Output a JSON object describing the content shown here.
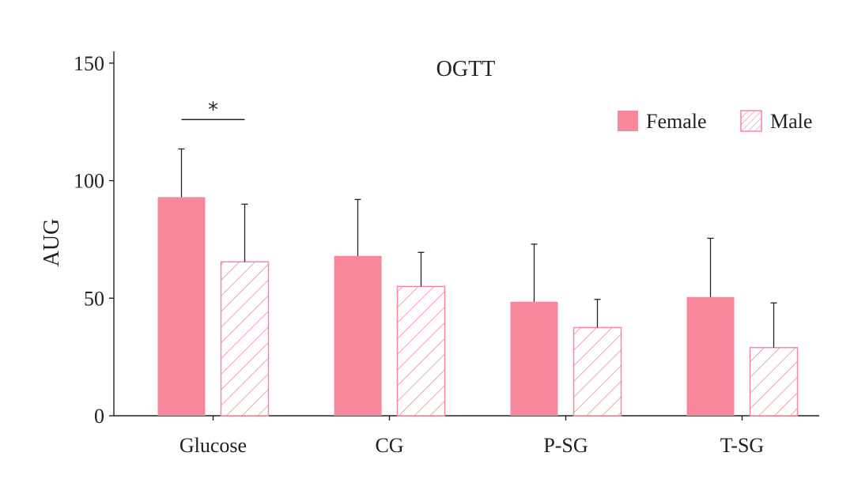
{
  "chart_data": {
    "type": "bar",
    "title": "OGTT",
    "xlabel": "",
    "ylabel": "AUG",
    "ylim": [
      0,
      155
    ],
    "yticks": [
      0,
      50,
      100,
      150
    ],
    "categories": [
      "Glucose",
      "CG",
      "P-SG",
      "T-SG"
    ],
    "series": [
      {
        "name": "Female",
        "values": [
          93,
          68,
          48.5,
          50.5
        ],
        "errors": [
          20.5,
          24,
          24.5,
          25
        ],
        "color": "#f7879a",
        "pattern": "solid"
      },
      {
        "name": "Male",
        "values": [
          65.5,
          55,
          37.5,
          29
        ],
        "errors": [
          24.5,
          14.5,
          12,
          19
        ],
        "color": "#f7879a",
        "pattern": "hatched"
      }
    ],
    "annotations": [
      {
        "category": "Glucose",
        "text": "*"
      }
    ],
    "legend_position": "top-right",
    "grid": false
  }
}
